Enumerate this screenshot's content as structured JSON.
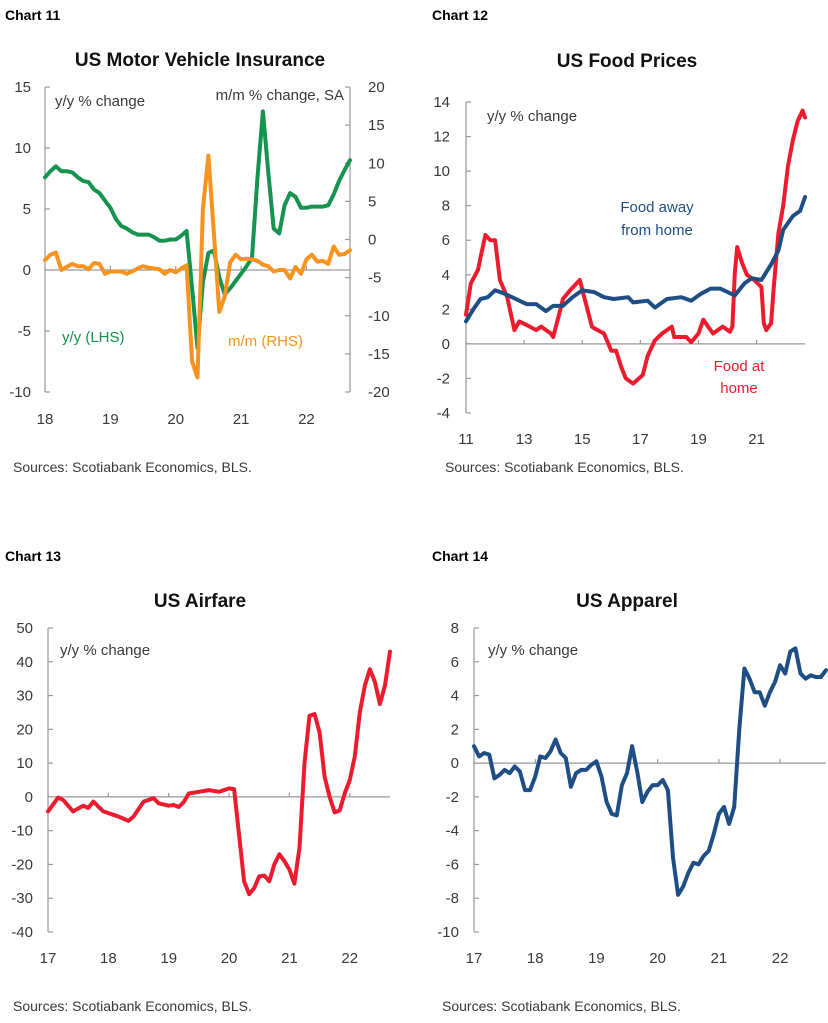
{
  "chart_data": [
    {
      "type": "line",
      "chart_label": "Chart 11",
      "title": "US Motor Vehicle Insurance",
      "y_axis_note": "y/y % change",
      "y2_axis_note": "m/m % change, SA",
      "ylim": [
        -10,
        15
      ],
      "yticks": [
        15,
        10,
        5,
        0,
        -5,
        -10
      ],
      "y2lim": [
        -20,
        20
      ],
      "y2ticks": [
        20,
        15,
        10,
        5,
        0,
        -5,
        -10,
        -15,
        -20
      ],
      "xlim": [
        "2018-01",
        "2022-09"
      ],
      "xticks": [
        "18",
        "19",
        "20",
        "21",
        "22"
      ],
      "grid": false,
      "series": [
        {
          "label": [
            "y/y (LHS)"
          ],
          "axis": "left",
          "color": "#15934f",
          "start": "2018-01",
          "frequency": "monthly",
          "values": [
            7.6,
            8.1,
            8.5,
            8.1,
            8.1,
            8.0,
            7.6,
            7.3,
            7.2,
            6.6,
            6.3,
            5.7,
            5.1,
            4.2,
            3.6,
            3.4,
            3.1,
            2.9,
            2.9,
            2.9,
            2.7,
            2.4,
            2.4,
            2.5,
            2.5,
            2.8,
            3.2,
            -1.5,
            -6.4,
            -1.0,
            1.4,
            1.6,
            -0.6,
            -2.0,
            -1.5,
            -0.9,
            -0.3,
            0.3,
            1.0,
            7.5,
            13.0,
            8.0,
            3.4,
            3.0,
            5.3,
            6.3,
            6.0,
            5.1,
            5.1,
            5.2,
            5.2,
            5.2,
            5.3,
            6.2,
            7.3,
            8.2,
            9.0
          ]
        },
        {
          "label": [
            "m/m (RHS)"
          ],
          "axis": "right",
          "color": "#f7931e",
          "start": "2018-01",
          "frequency": "monthly",
          "values": [
            -2.7,
            -2.0,
            -1.7,
            -4.0,
            -3.6,
            -3.2,
            -3.5,
            -3.5,
            -3.9,
            -3.1,
            -3.2,
            -4.5,
            -4.2,
            -4.2,
            -4.2,
            -4.5,
            -4.2,
            -3.8,
            -3.5,
            -3.7,
            -3.8,
            -3.9,
            -4.5,
            -4.0,
            -4.3,
            -3.8,
            -3.4,
            -16.0,
            -18.1,
            4.0,
            11.0,
            1.0,
            -9.5,
            -7.5,
            -3.0,
            -2.0,
            -2.6,
            -2.5,
            -2.6,
            -2.8,
            -3.3,
            -3.5,
            -4.2,
            -4.0,
            -4.0,
            -5.1,
            -3.6,
            -4.5,
            -2.6,
            -2.0,
            -2.9,
            -2.8,
            -3.2,
            -0.9,
            -2.0,
            -1.9,
            -1.4
          ]
        }
      ],
      "source": "Sources: Scotiabank Economics, BLS."
    },
    {
      "type": "line",
      "chart_label": "Chart 12",
      "title": "US Food Prices",
      "y_axis_note": "y/y % change",
      "ylim": [
        -4,
        14
      ],
      "yticks": [
        14,
        12,
        10,
        8,
        6,
        4,
        2,
        0,
        -2,
        -4
      ],
      "xlim": [
        "2011-01",
        "2022-09"
      ],
      "xticks": [
        "11",
        "13",
        "15",
        "17",
        "19",
        "21"
      ],
      "grid": false,
      "series": [
        {
          "label": [
            "Food at",
            "home"
          ],
          "axis": "left",
          "color": "#ec1c2e",
          "points": [
            [
              "2011-01",
              1.7
            ],
            [
              "2011-03",
              3.5
            ],
            [
              "2011-06",
              4.3
            ],
            [
              "2011-07",
              5.0
            ],
            [
              "2011-09",
              6.3
            ],
            [
              "2011-11",
              6.0
            ],
            [
              "2012-01",
              6.0
            ],
            [
              "2012-03",
              3.7
            ],
            [
              "2012-06",
              2.7
            ],
            [
              "2012-09",
              0.8
            ],
            [
              "2012-11",
              1.3
            ],
            [
              "2013-02",
              1.1
            ],
            [
              "2013-06",
              0.8
            ],
            [
              "2013-08",
              1.0
            ],
            [
              "2013-12",
              0.6
            ],
            [
              "2014-01",
              0.4
            ],
            [
              "2014-04",
              2.0
            ],
            [
              "2014-05",
              2.6
            ],
            [
              "2014-08",
              3.1
            ],
            [
              "2014-12",
              3.7
            ],
            [
              "2015-05",
              1.0
            ],
            [
              "2015-06",
              0.9
            ],
            [
              "2015-10",
              0.6
            ],
            [
              "2016-01",
              -0.4
            ],
            [
              "2016-03",
              -0.4
            ],
            [
              "2016-05",
              -1.3
            ],
            [
              "2016-07",
              -2.0
            ],
            [
              "2016-10",
              -2.3
            ],
            [
              "2017-02",
              -1.8
            ],
            [
              "2017-04",
              -0.7
            ],
            [
              "2017-07",
              0.2
            ],
            [
              "2017-10",
              0.6
            ],
            [
              "2018-02",
              1.0
            ],
            [
              "2018-03",
              0.4
            ],
            [
              "2018-06",
              0.4
            ],
            [
              "2018-08",
              0.4
            ],
            [
              "2018-10",
              0.1
            ],
            [
              "2019-01",
              0.6
            ],
            [
              "2019-03",
              1.4
            ],
            [
              "2019-05",
              1.0
            ],
            [
              "2019-07",
              0.6
            ],
            [
              "2019-11",
              1.0
            ],
            [
              "2020-02",
              0.7
            ],
            [
              "2020-03",
              1.0
            ],
            [
              "2020-04",
              4.1
            ],
            [
              "2020-05",
              5.6
            ],
            [
              "2020-07",
              4.7
            ],
            [
              "2020-09",
              4.0
            ],
            [
              "2020-12",
              3.7
            ],
            [
              "2021-03",
              3.3
            ],
            [
              "2021-04",
              1.2
            ],
            [
              "2021-05",
              0.8
            ],
            [
              "2021-07",
              1.2
            ],
            [
              "2021-08",
              3.1
            ],
            [
              "2021-10",
              6.4
            ],
            [
              "2021-12",
              8.0
            ],
            [
              "2022-02",
              10.3
            ],
            [
              "2022-04",
              11.8
            ],
            [
              "2022-06",
              12.9
            ],
            [
              "2022-08",
              13.5
            ],
            [
              "2022-09",
              13.1
            ]
          ]
        },
        {
          "label": [
            "Food away",
            "from home"
          ],
          "axis": "left",
          "color": "#1f4e85",
          "points": [
            [
              "2011-01",
              1.3
            ],
            [
              "2011-04",
              2.0
            ],
            [
              "2011-07",
              2.6
            ],
            [
              "2011-10",
              2.7
            ],
            [
              "2012-01",
              3.1
            ],
            [
              "2012-05",
              2.9
            ],
            [
              "2012-08",
              2.7
            ],
            [
              "2013-02",
              2.3
            ],
            [
              "2013-06",
              2.3
            ],
            [
              "2013-10",
              1.9
            ],
            [
              "2014-01",
              2.2
            ],
            [
              "2014-05",
              2.2
            ],
            [
              "2014-09",
              2.7
            ],
            [
              "2015-01",
              3.1
            ],
            [
              "2015-06",
              3.0
            ],
            [
              "2015-10",
              2.7
            ],
            [
              "2016-02",
              2.6
            ],
            [
              "2016-08",
              2.7
            ],
            [
              "2016-10",
              2.4
            ],
            [
              "2017-04",
              2.5
            ],
            [
              "2017-07",
              2.1
            ],
            [
              "2017-12",
              2.6
            ],
            [
              "2018-06",
              2.7
            ],
            [
              "2018-10",
              2.5
            ],
            [
              "2019-02",
              2.9
            ],
            [
              "2019-06",
              3.2
            ],
            [
              "2019-10",
              3.2
            ],
            [
              "2020-04",
              2.8
            ],
            [
              "2020-08",
              3.5
            ],
            [
              "2020-11",
              3.8
            ],
            [
              "2021-03",
              3.7
            ],
            [
              "2021-07",
              4.6
            ],
            [
              "2021-10",
              5.4
            ],
            [
              "2021-12",
              6.6
            ],
            [
              "2022-04",
              7.4
            ],
            [
              "2022-07",
              7.7
            ],
            [
              "2022-09",
              8.5
            ]
          ]
        }
      ],
      "source": "Sources: Scotiabank Economics, BLS."
    },
    {
      "type": "line",
      "chart_label": "Chart 13",
      "title": "US Airfare",
      "y_axis_note": "y/y % change",
      "ylim": [
        -40,
        50
      ],
      "yticks": [
        50,
        40,
        30,
        20,
        10,
        0,
        -10,
        -20,
        -30,
        -40
      ],
      "xlim": [
        "2017-01",
        "2022-09"
      ],
      "xticks": [
        "17",
        "18",
        "19",
        "20",
        "21",
        "22"
      ],
      "grid": false,
      "series": [
        {
          "axis": "left",
          "color": "#ec1c2e",
          "points": [
            [
              "2017-01",
              -4.3
            ],
            [
              "2017-03",
              -0.2
            ],
            [
              "2017-04",
              -0.9
            ],
            [
              "2017-06",
              -4.3
            ],
            [
              "2017-08",
              -2.6
            ],
            [
              "2017-09",
              -3.3
            ],
            [
              "2017-10",
              -1.4
            ],
            [
              "2017-12",
              -4.3
            ],
            [
              "2018-02",
              -5.3
            ],
            [
              "2018-03",
              -5.8
            ],
            [
              "2018-05",
              -7.1
            ],
            [
              "2018-06",
              -5.8
            ],
            [
              "2018-08",
              -1.4
            ],
            [
              "2018-10",
              -0.4
            ],
            [
              "2018-11",
              -1.9
            ],
            [
              "2019-01",
              -2.6
            ],
            [
              "2019-02",
              -2.4
            ],
            [
              "2019-03",
              -3.0
            ],
            [
              "2019-04",
              -1.5
            ],
            [
              "2019-05",
              1.0
            ],
            [
              "2019-07",
              1.5
            ],
            [
              "2019-09",
              2.0
            ],
            [
              "2019-11",
              1.5
            ],
            [
              "2019-12",
              2.0
            ],
            [
              "2020-01",
              2.5
            ],
            [
              "2020-02",
              2.3
            ],
            [
              "2020-04",
              -25.0
            ],
            [
              "2020-05",
              -28.8
            ],
            [
              "2020-06",
              -27.0
            ],
            [
              "2020-07",
              -23.5
            ],
            [
              "2020-08",
              -23.3
            ],
            [
              "2020-09",
              -25.0
            ],
            [
              "2020-10",
              -20.0
            ],
            [
              "2020-11",
              -17.0
            ],
            [
              "2020-12",
              -19.0
            ],
            [
              "2021-01",
              -21.5
            ],
            [
              "2021-02",
              -25.7
            ],
            [
              "2021-03",
              -15.0
            ],
            [
              "2021-04",
              10.0
            ],
            [
              "2021-05",
              24.0
            ],
            [
              "2021-06",
              24.5
            ],
            [
              "2021-07",
              19.0
            ],
            [
              "2021-08",
              6.0
            ],
            [
              "2021-09",
              0.0
            ],
            [
              "2021-10",
              -4.6
            ],
            [
              "2021-11",
              -4.0
            ],
            [
              "2021-12",
              1.0
            ],
            [
              "2022-01",
              5.0
            ],
            [
              "2022-02",
              12.0
            ],
            [
              "2022-03",
              25.0
            ],
            [
              "2022-04",
              33.0
            ],
            [
              "2022-05",
              37.8
            ],
            [
              "2022-06",
              34.0
            ],
            [
              "2022-07",
              27.5
            ],
            [
              "2022-08",
              33.0
            ],
            [
              "2022-09",
              43.0
            ]
          ]
        }
      ],
      "source": "Sources: Scotiabank Economics, BLS."
    },
    {
      "type": "line",
      "chart_label": "Chart 14",
      "title": "US Apparel",
      "y_axis_note": "y/y % change",
      "ylim": [
        -10,
        8
      ],
      "yticks": [
        8,
        6,
        4,
        2,
        0,
        -2,
        -4,
        -6,
        -8,
        -10
      ],
      "xlim": [
        "2017-01",
        "2022-10"
      ],
      "xticks": [
        "17",
        "18",
        "19",
        "20",
        "21",
        "22"
      ],
      "grid": false,
      "series": [
        {
          "axis": "left",
          "color": "#1f4e85",
          "start": "2017-01",
          "frequency": "monthly",
          "values": [
            1.0,
            0.4,
            0.6,
            0.5,
            -0.9,
            -0.7,
            -0.4,
            -0.6,
            -0.2,
            -0.5,
            -1.6,
            -1.6,
            -0.8,
            0.4,
            0.3,
            0.7,
            1.4,
            0.6,
            0.3,
            -1.4,
            -0.6,
            -0.4,
            -0.4,
            -0.1,
            0.1,
            -0.8,
            -2.3,
            -3.0,
            -3.1,
            -1.3,
            -0.6,
            1.0,
            -0.5,
            -2.3,
            -1.7,
            -1.3,
            -1.3,
            -1.0,
            -1.6,
            -5.6,
            -7.8,
            -7.3,
            -6.5,
            -5.9,
            -6.0,
            -5.5,
            -5.2,
            -4.2,
            -3.0,
            -2.6,
            -3.6,
            -2.6,
            2.0,
            5.6,
            5.0,
            4.2,
            4.2,
            3.4,
            4.2,
            4.8,
            5.8,
            5.3,
            6.6,
            6.8,
            5.3,
            5.0,
            5.2,
            5.1,
            5.1,
            5.5
          ]
        }
      ],
      "source": "Sources: Scotiabank Economics, BLS."
    }
  ]
}
